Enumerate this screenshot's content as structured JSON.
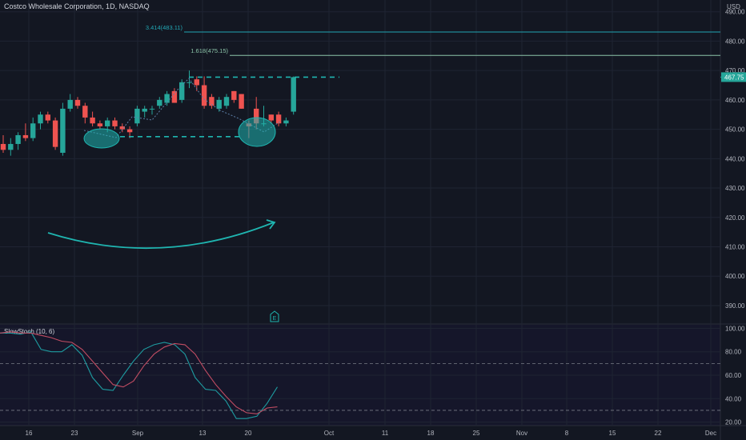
{
  "chart": {
    "title": "Costco Wholesale Corporation, 1D, NASDAQ",
    "currency": "USD",
    "last_price_label": "467.75",
    "earnings_marker": "E",
    "background": "#131722",
    "grid_color": "#1f2433",
    "up_color": "#26a69a",
    "down_color": "#ef5350",
    "accent": "#1fb5b0"
  },
  "chart_data": [
    {
      "type": "candlestick",
      "title": "Costco Wholesale Corporation, 1D, NASDAQ",
      "ylabel": "USD",
      "ylim": [
        384,
        494
      ],
      "y_ticks": [
        390,
        400,
        410,
        420,
        430,
        440,
        450,
        460,
        470,
        480,
        490
      ],
      "x_ticks": [
        "16",
        "23",
        "Sep",
        "13",
        "20",
        "Oct",
        "11",
        "18",
        "25",
        "Nov",
        "8",
        "15",
        "22",
        "Dec"
      ],
      "candles": [
        {
          "o": 445,
          "h": 448,
          "l": 442,
          "c": 443
        },
        {
          "o": 443,
          "h": 447,
          "l": 441,
          "c": 445
        },
        {
          "o": 445,
          "h": 449,
          "l": 443,
          "c": 448
        },
        {
          "o": 448,
          "h": 452,
          "l": 446,
          "c": 447
        },
        {
          "o": 447,
          "h": 454,
          "l": 446,
          "c": 452
        },
        {
          "o": 452,
          "h": 456,
          "l": 450,
          "c": 455
        },
        {
          "o": 455,
          "h": 456,
          "l": 452,
          "c": 453
        },
        {
          "o": 453,
          "h": 454,
          "l": 443,
          "c": 444
        },
        {
          "o": 442,
          "h": 459,
          "l": 441,
          "c": 457
        },
        {
          "o": 457,
          "h": 462,
          "l": 456,
          "c": 460
        },
        {
          "o": 460,
          "h": 461,
          "l": 457,
          "c": 458
        },
        {
          "o": 458,
          "h": 459,
          "l": 452,
          "c": 454
        },
        {
          "o": 454,
          "h": 456,
          "l": 451,
          "c": 452
        },
        {
          "o": 452,
          "h": 453,
          "l": 450,
          "c": 451
        },
        {
          "o": 451,
          "h": 454,
          "l": 449,
          "c": 453
        },
        {
          "o": 453,
          "h": 454,
          "l": 450,
          "c": 451
        },
        {
          "o": 451,
          "h": 452,
          "l": 449,
          "c": 450
        },
        {
          "o": 450,
          "h": 451,
          "l": 447,
          "c": 449
        },
        {
          "o": 452,
          "h": 458,
          "l": 451,
          "c": 457
        },
        {
          "o": 456,
          "h": 458,
          "l": 454,
          "c": 457
        },
        {
          "o": 457,
          "h": 458,
          "l": 455,
          "c": 457
        },
        {
          "o": 458,
          "h": 461,
          "l": 457,
          "c": 460
        },
        {
          "o": 459,
          "h": 463,
          "l": 458,
          "c": 462
        },
        {
          "o": 463,
          "h": 464,
          "l": 459,
          "c": 459
        },
        {
          "o": 460,
          "h": 467,
          "l": 459,
          "c": 466
        },
        {
          "o": 466,
          "h": 470,
          "l": 464,
          "c": 466
        },
        {
          "o": 467,
          "h": 468,
          "l": 463,
          "c": 465
        },
        {
          "o": 465,
          "h": 468,
          "l": 457,
          "c": 458
        },
        {
          "o": 461,
          "h": 462,
          "l": 457,
          "c": 458
        },
        {
          "o": 457,
          "h": 461,
          "l": 456,
          "c": 460
        },
        {
          "o": 458,
          "h": 462,
          "l": 457,
          "c": 461
        },
        {
          "o": 463,
          "h": 463,
          "l": 459,
          "c": 460
        },
        {
          "o": 462,
          "h": 462,
          "l": 457,
          "c": 457
        },
        {
          "o": 452,
          "h": 453,
          "l": 447,
          "c": 451
        },
        {
          "o": 457,
          "h": 461,
          "l": 450,
          "c": 452
        },
        {
          "o": 452,
          "h": 458,
          "l": 451,
          "c": 452
        },
        {
          "o": 455,
          "h": 455,
          "l": 452,
          "c": 453
        },
        {
          "o": 455,
          "h": 456,
          "l": 451,
          "c": 452
        },
        {
          "o": 452,
          "h": 454,
          "l": 451,
          "c": 453
        },
        {
          "o": 456,
          "h": 468,
          "l": 455,
          "c": 467.75
        }
      ],
      "levels": [
        {
          "label": "3.414(483.11)",
          "value": 483.11
        },
        {
          "label": "1.618(475.15)",
          "value": 475.15
        },
        {
          "label": "",
          "value": 467.75,
          "style": "dashed"
        },
        {
          "label": "",
          "value": 447.5,
          "style": "dashed"
        }
      ]
    },
    {
      "type": "line",
      "title": "SlowStoch (10, 6)",
      "ylim": [
        17,
        103
      ],
      "y_ticks": [
        20,
        40,
        60,
        80,
        100
      ],
      "levels": [
        70,
        30
      ],
      "series": [
        {
          "color": "#1e9ba0",
          "values": [
            96,
            96,
            95,
            97,
            82,
            80,
            80,
            86,
            77,
            58,
            48,
            47,
            60,
            72,
            82,
            86,
            88,
            86,
            78,
            58,
            48,
            47,
            38,
            23,
            23,
            25,
            36,
            50
          ]
        },
        {
          "color": "#c24d63",
          "values": [
            96,
            97,
            96,
            96,
            94,
            92,
            89,
            88,
            82,
            72,
            62,
            52,
            50,
            55,
            68,
            78,
            84,
            87,
            86,
            78,
            64,
            52,
            42,
            33,
            28,
            27,
            32,
            33
          ]
        }
      ]
    }
  ]
}
